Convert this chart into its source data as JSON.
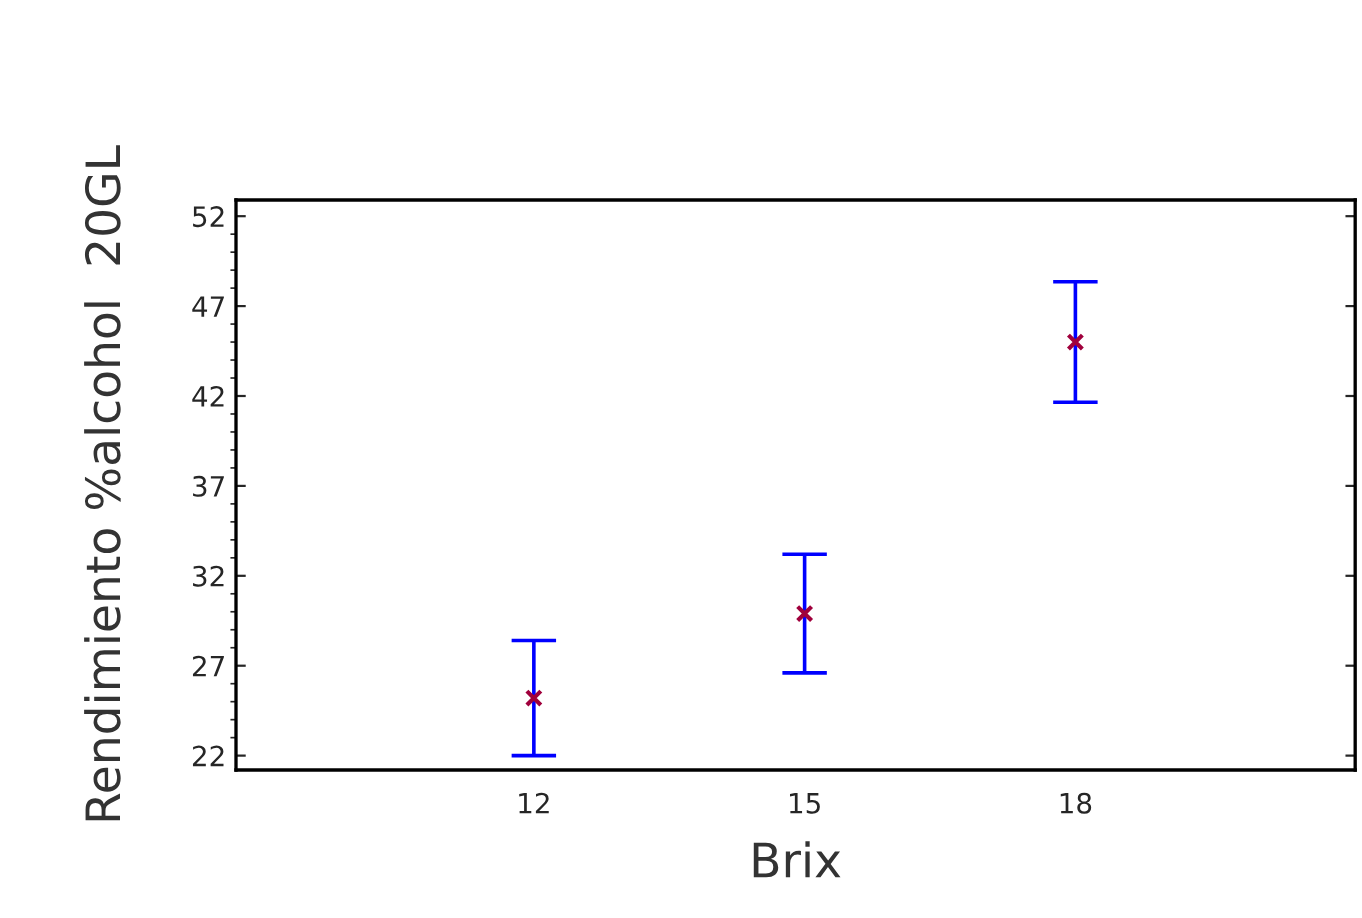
{
  "chart_data": {
    "type": "scatter",
    "xlabel": "Brix",
    "ylabel": "Rendimiento %alcohol  20GL",
    "x": [
      12,
      15,
      18
    ],
    "series": [
      {
        "color": "#a0003c",
        "values": [
          25.2,
          29.9,
          45.0
        ],
        "errors": [
          3.2,
          3.3,
          3.35
        ]
      }
    ],
    "marker": "cross",
    "xlim": [
      8.7,
      21.1
    ],
    "xticks": [
      12,
      15,
      18
    ],
    "ylim": [
      21.2,
      52.9
    ],
    "yticks": [
      22,
      27,
      32,
      37,
      42,
      47,
      52
    ],
    "grid": false,
    "legend": false
  }
}
